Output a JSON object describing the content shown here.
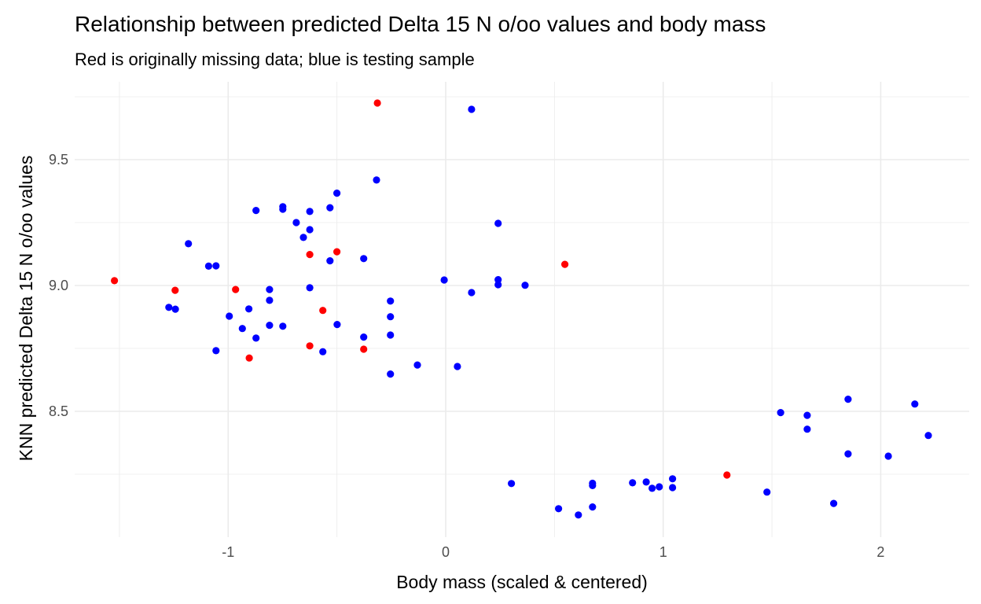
{
  "chart_data": {
    "type": "scatter",
    "title": "Relationship between predicted Delta 15 N o/oo values and body mass",
    "subtitle": "Red is originally missing data; blue is testing sample",
    "xlabel": "Body mass (scaled & centered)",
    "ylabel": "KNN predicted Delta 15 N o/oo values",
    "xlim": [
      -1.7,
      2.4
    ],
    "ylim": [
      8.03,
      9.8
    ],
    "x_ticks": [
      -1,
      0,
      1,
      2
    ],
    "x_tick_labels": [
      "-1",
      "0",
      "1",
      "2"
    ],
    "y_ticks": [
      8.5,
      9.0,
      9.5
    ],
    "y_tick_labels": [
      "8.5",
      "9.0",
      "9.5"
    ],
    "x_minor": [
      -1.5,
      -0.5,
      0.5,
      1.5
    ],
    "y_minor": [
      8.25,
      8.75,
      9.25,
      9.75
    ],
    "grid": true,
    "legend": "none",
    "series": [
      {
        "name": "originally missing data",
        "color": "#ff0000",
        "points": [
          [
            -1.523,
            9.019
          ],
          [
            -1.244,
            8.981
          ],
          [
            -0.966,
            8.984
          ],
          [
            -0.903,
            8.712
          ],
          [
            -0.625,
            9.123
          ],
          [
            -0.5,
            9.134
          ],
          [
            -0.565,
            8.901
          ],
          [
            -0.625,
            8.76
          ],
          [
            -0.377,
            8.747
          ],
          [
            -0.314,
            9.725
          ],
          [
            0.548,
            9.084
          ],
          [
            1.293,
            8.247
          ]
        ]
      },
      {
        "name": "testing sample",
        "color": "#0000ff",
        "points": [
          [
            -1.183,
            9.166
          ],
          [
            -1.09,
            9.077
          ],
          [
            -1.056,
            9.078
          ],
          [
            -1.273,
            8.913
          ],
          [
            -1.243,
            8.906
          ],
          [
            -0.995,
            8.878
          ],
          [
            -0.935,
            8.829
          ],
          [
            -0.905,
            8.907
          ],
          [
            -0.872,
            8.791
          ],
          [
            -1.056,
            8.741
          ],
          [
            -0.872,
            9.298
          ],
          [
            -0.749,
            9.313
          ],
          [
            -0.749,
            9.303
          ],
          [
            -0.625,
            9.294
          ],
          [
            -0.532,
            9.309
          ],
          [
            -0.5,
            9.367
          ],
          [
            -0.687,
            9.25
          ],
          [
            -0.625,
            9.222
          ],
          [
            -0.654,
            9.191
          ],
          [
            -0.532,
            9.098
          ],
          [
            -0.377,
            9.107
          ],
          [
            -0.318,
            9.419
          ],
          [
            -0.81,
            8.984
          ],
          [
            -0.81,
            8.941
          ],
          [
            -0.81,
            8.842
          ],
          [
            -0.749,
            8.838
          ],
          [
            -0.625,
            8.991
          ],
          [
            -0.499,
            8.845
          ],
          [
            -0.565,
            8.737
          ],
          [
            -0.377,
            8.795
          ],
          [
            -0.254,
            8.938
          ],
          [
            -0.254,
            8.876
          ],
          [
            -0.254,
            8.803
          ],
          [
            -0.254,
            8.648
          ],
          [
            0.119,
            9.7
          ],
          [
            0.241,
            9.247
          ],
          [
            -0.007,
            9.022
          ],
          [
            0.241,
            9.023
          ],
          [
            0.241,
            9.003
          ],
          [
            0.119,
            8.972
          ],
          [
            0.365,
            9.001
          ],
          [
            -0.13,
            8.684
          ],
          [
            0.054,
            8.678
          ],
          [
            0.302,
            8.213
          ],
          [
            0.675,
            8.214
          ],
          [
            0.675,
            8.205
          ],
          [
            0.519,
            8.113
          ],
          [
            0.61,
            8.088
          ],
          [
            0.675,
            8.12
          ],
          [
            0.859,
            8.216
          ],
          [
            0.922,
            8.219
          ],
          [
            0.949,
            8.194
          ],
          [
            0.982,
            8.2
          ],
          [
            1.043,
            8.232
          ],
          [
            1.043,
            8.197
          ],
          [
            1.477,
            8.179
          ],
          [
            1.54,
            8.495
          ],
          [
            1.662,
            8.484
          ],
          [
            1.662,
            8.429
          ],
          [
            1.85,
            8.548
          ],
          [
            1.85,
            8.331
          ],
          [
            1.784,
            8.134
          ],
          [
            2.157,
            8.529
          ],
          [
            2.035,
            8.322
          ],
          [
            2.219,
            8.404
          ]
        ]
      }
    ]
  }
}
